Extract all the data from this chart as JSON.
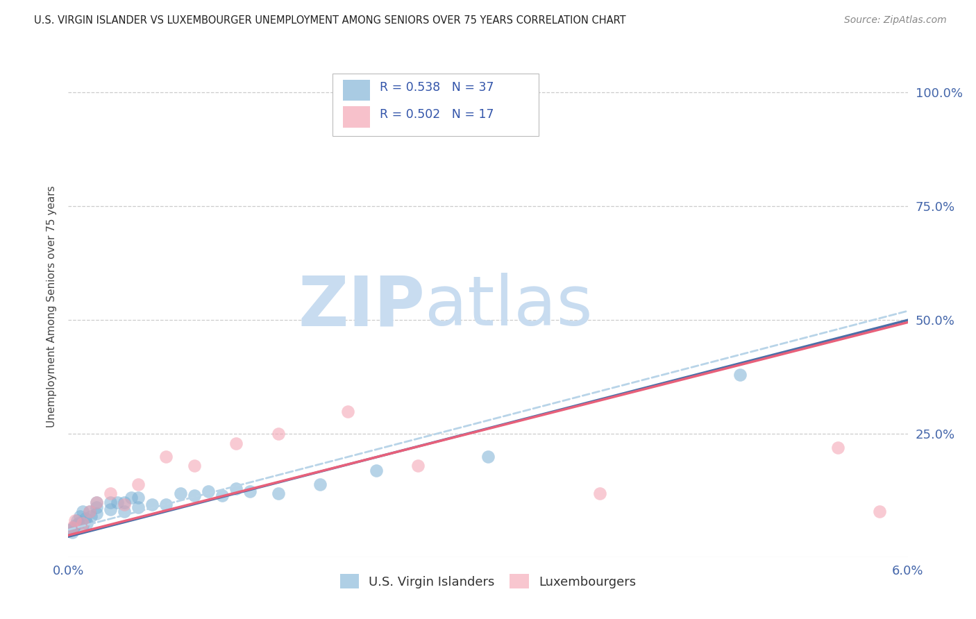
{
  "title": "U.S. VIRGIN ISLANDER VS LUXEMBOURGER UNEMPLOYMENT AMONG SENIORS OVER 75 YEARS CORRELATION CHART",
  "source": "Source: ZipAtlas.com",
  "ylabel": "Unemployment Among Seniors over 75 years",
  "xlim": [
    0.0,
    0.06
  ],
  "ylim": [
    -0.02,
    1.08
  ],
  "xticks": [
    0.0,
    0.01,
    0.02,
    0.03,
    0.04,
    0.05,
    0.06
  ],
  "yticks": [
    0.0,
    0.25,
    0.5,
    0.75,
    1.0
  ],
  "ytick_labels_right": [
    "",
    "25.0%",
    "50.0%",
    "75.0%",
    "100.0%"
  ],
  "xtick_labels": [
    "0.0%",
    "",
    "",
    "",
    "",
    "",
    "6.0%"
  ],
  "blue_color": "#7BAFD4",
  "pink_color": "#F4A0B0",
  "blue_line_color": "#4B6FA8",
  "pink_line_color": "#E8607A",
  "dashed_line_color": "#B8D4E8",
  "legend_R_blue": "0.538",
  "legend_N_blue": "37",
  "legend_R_pink": "0.502",
  "legend_N_pink": "17",
  "blue_scatter_x": [
    0.0002,
    0.0003,
    0.0004,
    0.0005,
    0.0006,
    0.0007,
    0.0008,
    0.001,
    0.001,
    0.0012,
    0.0013,
    0.0015,
    0.0016,
    0.002,
    0.002,
    0.002,
    0.003,
    0.003,
    0.0035,
    0.004,
    0.004,
    0.0045,
    0.005,
    0.005,
    0.006,
    0.007,
    0.008,
    0.009,
    0.01,
    0.011,
    0.012,
    0.013,
    0.015,
    0.018,
    0.022,
    0.03,
    0.048
  ],
  "blue_scatter_y": [
    0.04,
    0.035,
    0.045,
    0.05,
    0.06,
    0.055,
    0.07,
    0.05,
    0.08,
    0.065,
    0.055,
    0.08,
    0.07,
    0.09,
    0.1,
    0.075,
    0.085,
    0.1,
    0.1,
    0.08,
    0.1,
    0.11,
    0.09,
    0.11,
    0.095,
    0.095,
    0.12,
    0.115,
    0.125,
    0.115,
    0.13,
    0.125,
    0.12,
    0.14,
    0.17,
    0.2,
    0.38
  ],
  "pink_scatter_x": [
    0.0003,
    0.0005,
    0.001,
    0.0015,
    0.002,
    0.003,
    0.004,
    0.005,
    0.007,
    0.009,
    0.012,
    0.015,
    0.02,
    0.025,
    0.038,
    0.055,
    0.058
  ],
  "pink_scatter_y": [
    0.045,
    0.06,
    0.055,
    0.08,
    0.1,
    0.12,
    0.095,
    0.14,
    0.2,
    0.18,
    0.23,
    0.25,
    0.3,
    0.18,
    0.12,
    0.22,
    0.08
  ],
  "blue_trendline_x": [
    0.0,
    0.06
  ],
  "blue_trendline_y": [
    0.025,
    0.5
  ],
  "pink_trendline_x": [
    0.0,
    0.06
  ],
  "pink_trendline_y": [
    0.028,
    0.495
  ],
  "dashed_trendline_x": [
    0.0,
    0.06
  ],
  "dashed_trendline_y": [
    0.04,
    0.52
  ],
  "grid_yticks": [
    0.25,
    0.5,
    0.75,
    1.0
  ],
  "watermark_zip_color": "#C8DCF0",
  "watermark_atlas_color": "#C8DCF0"
}
